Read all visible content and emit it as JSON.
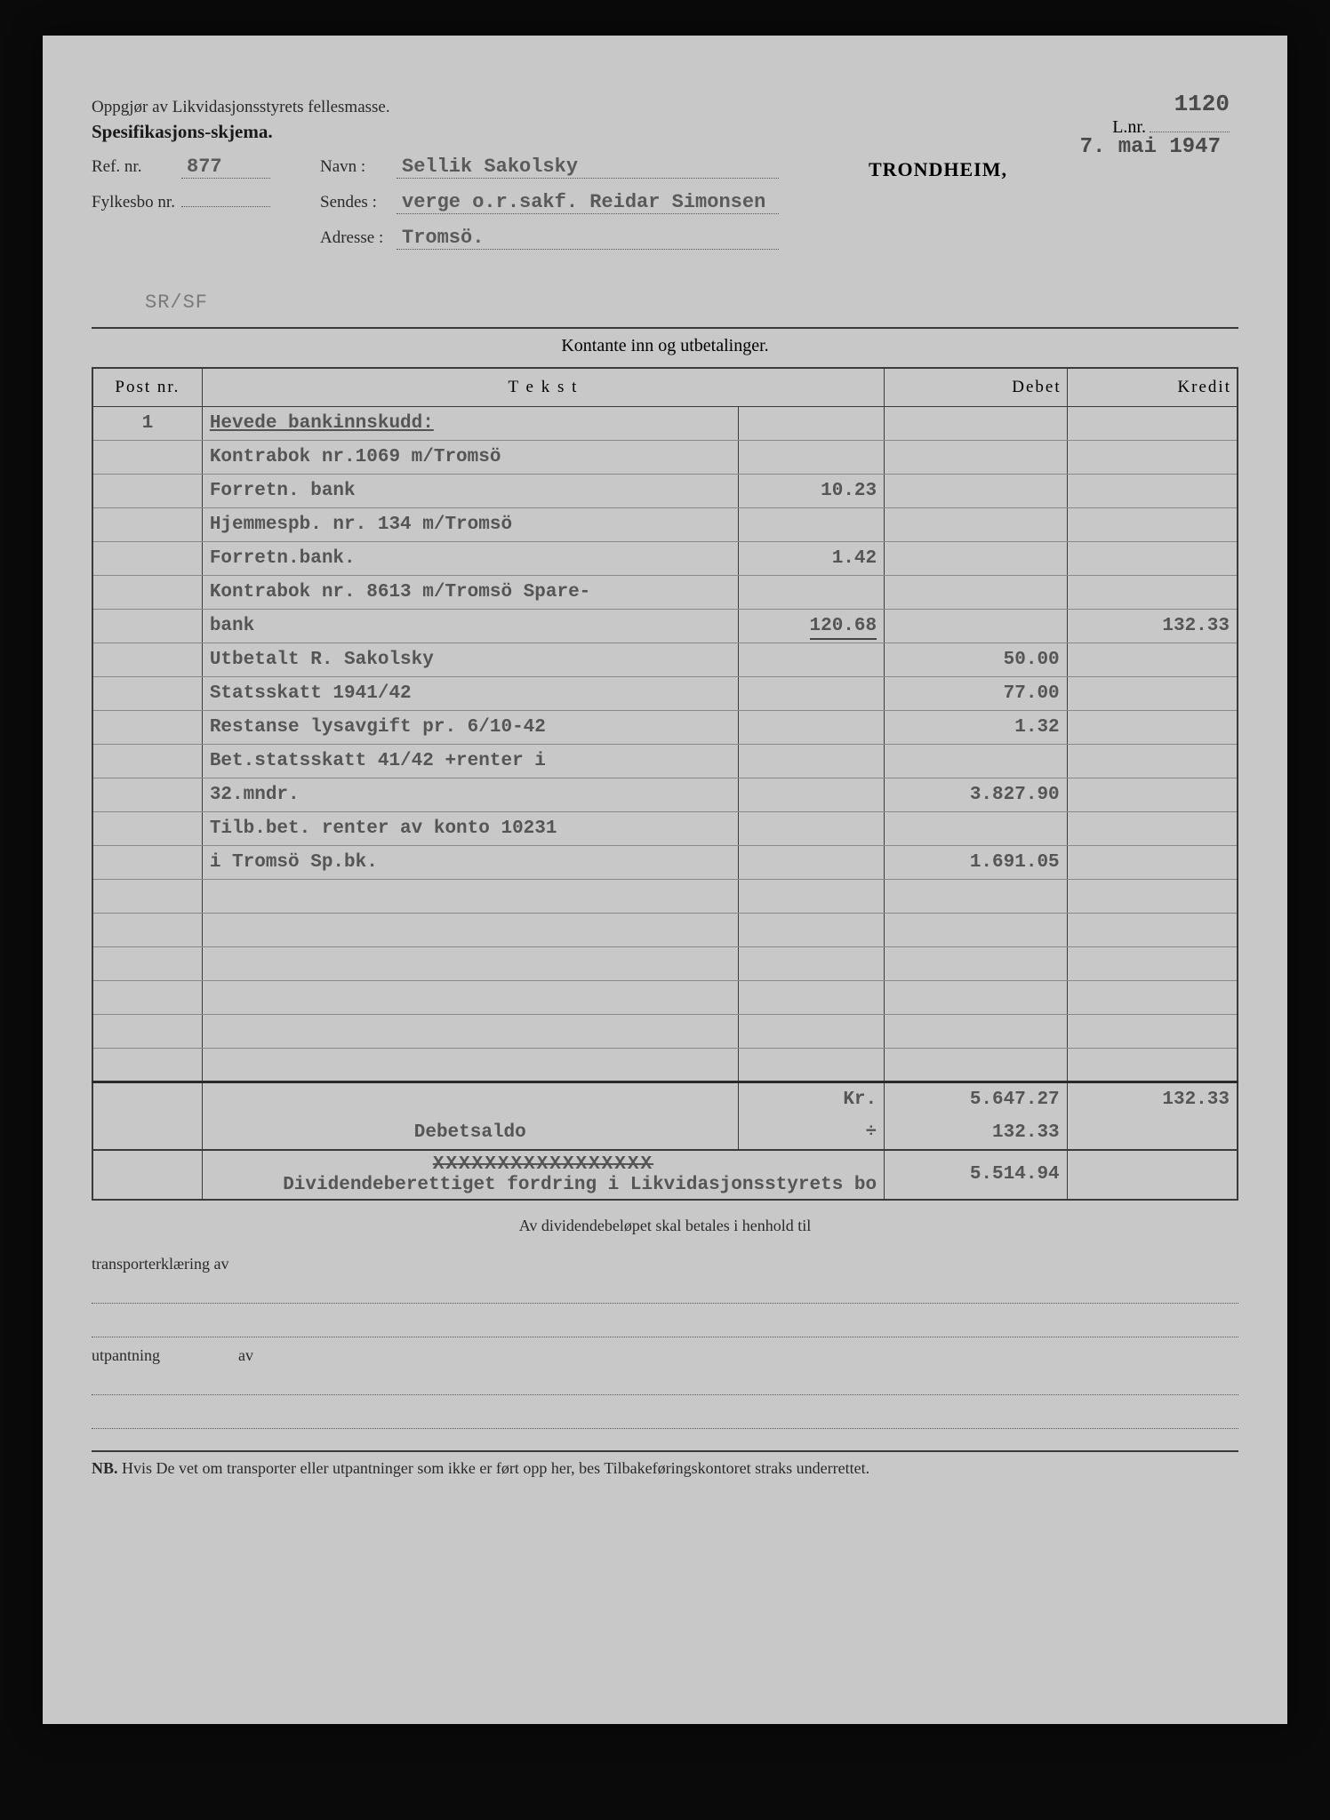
{
  "header": {
    "lnr_label": "L.nr.",
    "lnr_value": "1120",
    "date": "7. mai 1947",
    "title_line1": "Oppgjør av Likvidasjonsstyrets fellesmasse.",
    "title_line2": "Spesifikasjons-skjema.",
    "city": "TRONDHEIM,",
    "ref_label": "Ref. nr.",
    "ref_value": "877",
    "navn_label": "Navn :",
    "navn_value": "Sellik Sakolsky",
    "fylkes_label": "Fylkesbo nr.",
    "fylkes_value": "",
    "sendes_label": "Sendes :",
    "sendes_value": "verge o.r.sakf. Reidar Simonsen",
    "adresse_label": "Adresse :",
    "adresse_value": "Tromsö.",
    "clerk": "SR/SF"
  },
  "section_title": "Kontante inn og utbetalinger.",
  "columns": {
    "post": "Post nr.",
    "tekst": "T e k s t",
    "debet": "Debet",
    "kredit": "Kredit"
  },
  "rows": [
    {
      "post": "1",
      "tekst": "Hevede bankinnskudd:",
      "sub": "",
      "deb": "",
      "kre": "",
      "tekst_underline": true
    },
    {
      "post": "",
      "tekst": "Kontrabok nr.1069 m/Tromsö",
      "sub": "",
      "deb": "",
      "kre": ""
    },
    {
      "post": "",
      "tekst": "Forretn. bank",
      "sub": "10.23",
      "deb": "",
      "kre": ""
    },
    {
      "post": "",
      "tekst": "Hjemmespb. nr. 134 m/Tromsö",
      "sub": "",
      "deb": "",
      "kre": ""
    },
    {
      "post": "",
      "tekst": "Forretn.bank.",
      "sub": "1.42",
      "deb": "",
      "kre": ""
    },
    {
      "post": "",
      "tekst": "Kontrabok nr. 8613 m/Tromsö Spare-",
      "sub": "",
      "deb": "",
      "kre": ""
    },
    {
      "post": "",
      "tekst": "bank",
      "sub": "120.68",
      "deb": "",
      "kre": "132.33",
      "sub_underline": true
    },
    {
      "post": "",
      "tekst": "Utbetalt R. Sakolsky",
      "sub": "",
      "deb": "50.00",
      "kre": ""
    },
    {
      "post": "",
      "tekst": "Statsskatt 1941/42",
      "sub": "",
      "deb": "77.00",
      "kre": ""
    },
    {
      "post": "",
      "tekst": "Restanse lysavgift pr. 6/10-42",
      "sub": "",
      "deb": "1.32",
      "kre": ""
    },
    {
      "post": "",
      "tekst": "Bet.statsskatt 41/42 +renter i",
      "sub": "",
      "deb": "",
      "kre": ""
    },
    {
      "post": "",
      "tekst": "32.mndr.",
      "sub": "",
      "deb": "3.827.90",
      "kre": ""
    },
    {
      "post": "",
      "tekst": "Tilb.bet. renter av konto 10231",
      "sub": "",
      "deb": "",
      "kre": ""
    },
    {
      "post": "",
      "tekst": "i Tromsö Sp.bk.",
      "sub": "",
      "deb": "1.691.05",
      "kre": ""
    },
    {
      "post": "",
      "tekst": "",
      "sub": "",
      "deb": "",
      "kre": ""
    },
    {
      "post": "",
      "tekst": "",
      "sub": "",
      "deb": "",
      "kre": ""
    },
    {
      "post": "",
      "tekst": "",
      "sub": "",
      "deb": "",
      "kre": ""
    },
    {
      "post": "",
      "tekst": "",
      "sub": "",
      "deb": "",
      "kre": ""
    },
    {
      "post": "",
      "tekst": "",
      "sub": "",
      "deb": "",
      "kre": ""
    },
    {
      "post": "",
      "tekst": "",
      "sub": "",
      "deb": "",
      "kre": ""
    }
  ],
  "totals": {
    "kr_label": "Kr.",
    "kr_deb": "5.647.27",
    "kr_kre": "132.33",
    "minus_label": "÷",
    "minus_deb": "132.33",
    "saldo_label": "Debetsaldo",
    "xed": "XXXXXXXXXXXXXXXXX",
    "dividend_label": "Dividendeberettiget fordring i Likvidasjonsstyrets bo",
    "dividend_deb": "5.514.94"
  },
  "footer": {
    "heading": "Av dividendebeløpet skal betales i henhold til",
    "transport_label": "transporterklæring av",
    "utpantning_label": "utpantning",
    "av_label": "av",
    "nb": "NB. Hvis De vet om transporter eller utpantninger som ikke er ført opp her, bes Tilbakeføringskontoret straks underrettet."
  }
}
